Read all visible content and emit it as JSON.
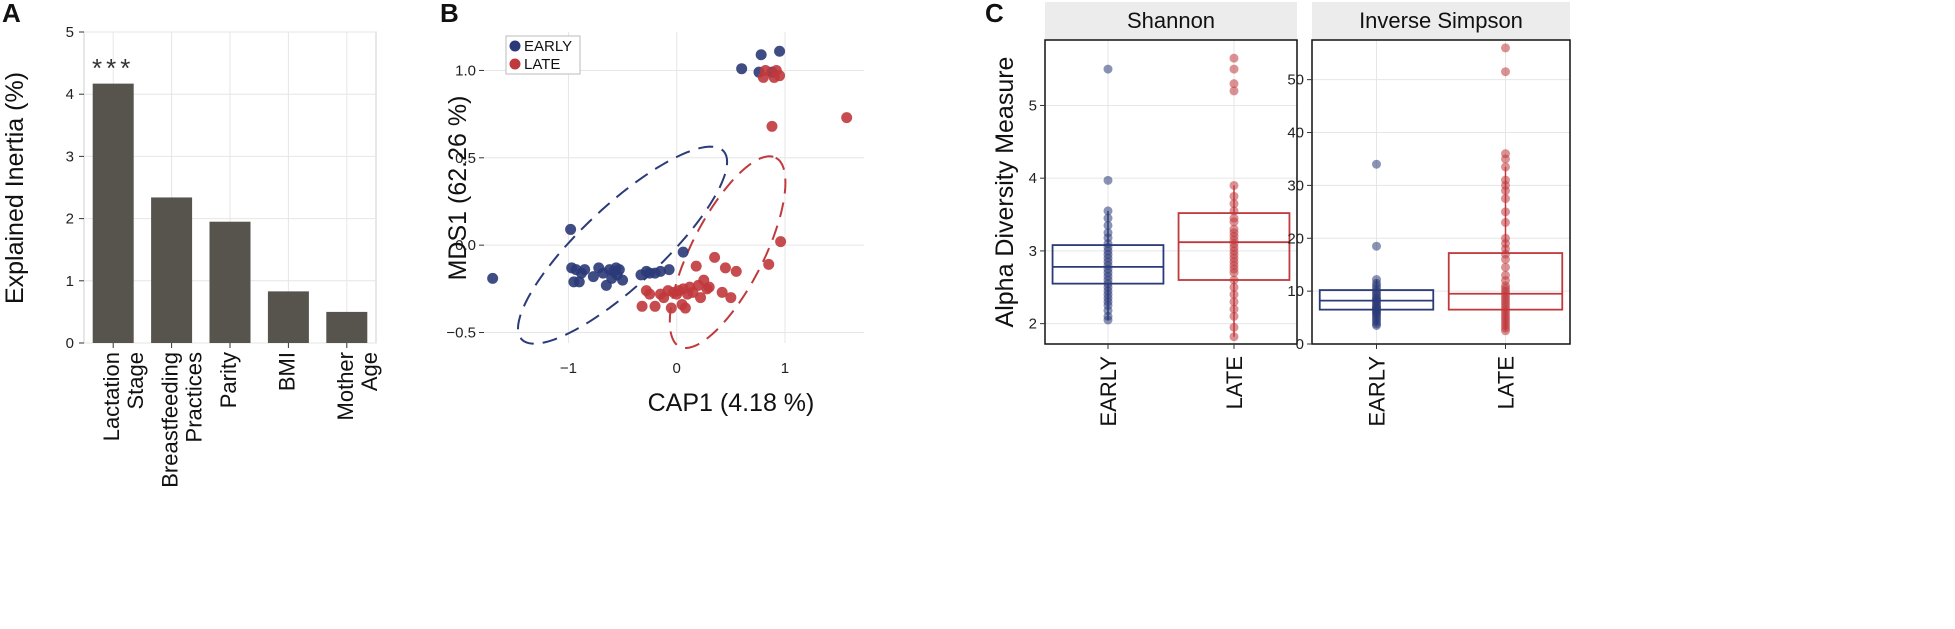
{
  "panels": {
    "a": "A",
    "b": "B",
    "c": "C"
  },
  "colors": {
    "early": "#2b3a78",
    "late": "#c0393c",
    "bar": "#57534d",
    "strip_bg": "#ececec",
    "grid": "#e6e6e6"
  },
  "chart_data": [
    {
      "type": "bar",
      "panel": "A",
      "categories": [
        [
          "Lactation",
          "Stage"
        ],
        [
          "Breastfeeding",
          "Practices"
        ],
        [
          "Parity"
        ],
        [
          "BMI"
        ],
        [
          "Mother",
          "Age"
        ]
      ],
      "values": [
        4.17,
        2.34,
        1.95,
        0.83,
        0.5
      ],
      "ylabel": "Explained Inertia (%)",
      "ylim": [
        0,
        5
      ],
      "yticks": [
        0,
        1,
        2,
        3,
        4,
        5
      ],
      "annotations": [
        {
          "category_index": 0,
          "text": "***"
        }
      ]
    },
    {
      "type": "scatter",
      "panel": "B",
      "xlabel": "CAP1 (4.18 %)",
      "ylabel": "MDS1 (62.26 %)",
      "xlim": [
        -1.78,
        1.73
      ],
      "ylim": [
        -0.56,
        1.22
      ],
      "xticks": [
        -1,
        0,
        1
      ],
      "xtick_labels": [
        "−1",
        "0",
        "1"
      ],
      "yticks": [
        -0.5,
        0,
        0.5,
        1
      ],
      "ytick_labels": [
        "−0.5",
        "0.0",
        "0.5",
        "1.0"
      ],
      "legend": [
        "EARLY",
        "LATE"
      ],
      "series": [
        {
          "name": "EARLY",
          "x": [
            -1.7,
            -0.98,
            -0.97,
            -0.95,
            -0.93,
            -0.9,
            -0.88,
            -0.85,
            -0.77,
            -0.72,
            -0.68,
            -0.65,
            -0.62,
            -0.6,
            -0.58,
            -0.56,
            -0.55,
            -0.53,
            -0.5,
            -0.33,
            -0.28,
            -0.25,
            -0.2,
            -0.15,
            -0.07,
            0.06,
            0.6,
            0.76,
            0.78,
            0.88,
            0.95
          ],
          "y": [
            -0.19,
            0.09,
            -0.13,
            -0.21,
            -0.14,
            -0.21,
            -0.16,
            -0.14,
            -0.18,
            -0.13,
            -0.16,
            -0.23,
            -0.14,
            -0.19,
            -0.15,
            -0.13,
            -0.17,
            -0.14,
            -0.2,
            -0.17,
            -0.15,
            -0.16,
            -0.16,
            -0.15,
            -0.14,
            -0.04,
            1.01,
            0.99,
            1.09,
            0.99,
            1.11
          ]
        },
        {
          "name": "LATE",
          "x": [
            -0.32,
            -0.28,
            -0.25,
            -0.2,
            -0.15,
            -0.12,
            -0.08,
            -0.05,
            -0.03,
            0.0,
            0.02,
            0.05,
            0.06,
            0.08,
            0.1,
            0.12,
            0.15,
            0.18,
            0.2,
            0.22,
            0.25,
            0.28,
            0.3,
            0.35,
            0.42,
            0.45,
            0.5,
            0.55,
            0.8,
            0.82,
            0.85,
            0.88,
            0.9,
            0.92,
            0.95,
            0.96,
            1.57
          ],
          "y": [
            -0.35,
            -0.26,
            -0.28,
            -0.35,
            -0.28,
            -0.3,
            -0.26,
            -0.36,
            -0.27,
            -0.28,
            -0.26,
            -0.34,
            -0.25,
            -0.36,
            -0.28,
            -0.24,
            -0.27,
            -0.12,
            -0.23,
            -0.3,
            -0.2,
            -0.25,
            -0.24,
            -0.07,
            -0.27,
            -0.13,
            -0.3,
            -0.15,
            0.96,
            1.0,
            -0.11,
            0.68,
            0.96,
            1.0,
            0.97,
            0.02,
            0.73
          ]
        }
      ]
    },
    {
      "type": "box",
      "panel": "C",
      "facet": "Shannon",
      "ylabel": "Alpha Diversity Measure",
      "ylim": [
        1.72,
        5.9
      ],
      "yticks": [
        2,
        3,
        4,
        5
      ],
      "categories": [
        "EARLY",
        "LATE"
      ],
      "boxes": [
        {
          "name": "EARLY",
          "q1": 2.55,
          "median": 2.78,
          "q3": 3.08,
          "whisker_low": 2.05,
          "whisker_high": 3.55
        },
        {
          "name": "LATE",
          "q1": 2.6,
          "median": 3.12,
          "q3": 3.52,
          "whisker_low": 1.82,
          "whisker_high": 3.9
        }
      ],
      "points": [
        {
          "group": "EARLY",
          "values": [
            5.5,
            3.97,
            3.55,
            3.45,
            3.35,
            3.25,
            3.18,
            3.1,
            3.05,
            3.0,
            2.95,
            2.9,
            2.85,
            2.8,
            2.75,
            2.7,
            2.65,
            2.6,
            2.55,
            2.5,
            2.45,
            2.4,
            2.35,
            2.3,
            2.25,
            2.18,
            2.1,
            2.05
          ]
        },
        {
          "group": "LATE",
          "values": [
            5.65,
            5.5,
            5.3,
            5.2,
            3.9,
            3.75,
            3.65,
            3.55,
            3.45,
            3.4,
            3.3,
            3.25,
            3.2,
            3.15,
            3.1,
            3.05,
            3.0,
            2.95,
            2.9,
            2.85,
            2.8,
            2.75,
            2.7,
            2.6,
            2.5,
            2.4,
            2.3,
            2.2,
            2.1,
            1.95,
            1.82
          ]
        }
      ]
    },
    {
      "type": "box",
      "panel": "C",
      "facet": "Inverse Simpson",
      "ylim": [
        0.0,
        57.5
      ],
      "yticks": [
        0,
        10,
        20,
        30,
        40,
        50
      ],
      "categories": [
        "EARLY",
        "LATE"
      ],
      "boxes": [
        {
          "name": "EARLY",
          "q1": 6.5,
          "median": 8.2,
          "q3": 10.2,
          "whisker_low": 3.5,
          "whisker_high": 12.2
        },
        {
          "name": "LATE",
          "q1": 6.5,
          "median": 9.5,
          "q3": 17.2,
          "whisker_low": 2.5,
          "whisker_high": 33.5
        }
      ],
      "points": [
        {
          "group": "EARLY",
          "values": [
            34.0,
            18.5,
            12.2,
            11.5,
            11.0,
            10.5,
            10.0,
            9.6,
            9.2,
            8.8,
            8.5,
            8.2,
            8.0,
            7.6,
            7.2,
            7.0,
            6.8,
            6.5,
            6.2,
            6.0,
            5.7,
            5.4,
            5.0,
            4.6,
            4.2,
            3.8,
            3.5
          ]
        },
        {
          "group": "LATE",
          "values": [
            56.0,
            51.5,
            36.0,
            35.0,
            33.5,
            31.0,
            30.0,
            29.0,
            27.5,
            25.0,
            23.0,
            20.0,
            19.0,
            18.0,
            17.0,
            16.0,
            14.5,
            13.0,
            12.0,
            11.0,
            10.5,
            10.0,
            9.5,
            9.0,
            8.5,
            8.0,
            7.5,
            7.0,
            6.5,
            6.0,
            5.5,
            5.0,
            4.5,
            4.0,
            3.5,
            3.0,
            2.5
          ]
        }
      ]
    }
  ]
}
